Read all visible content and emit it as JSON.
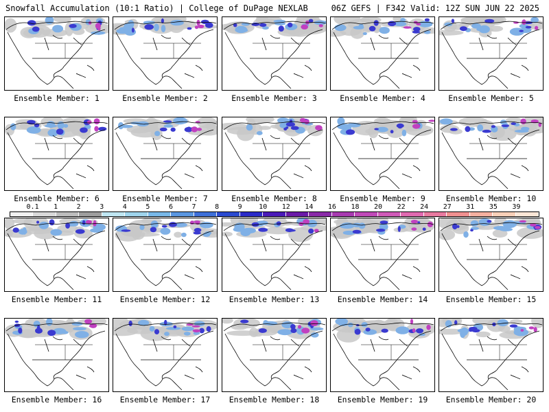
{
  "header": {
    "left_title": "Snowfall Accumulation (10:1 Ratio) | College of DuPage NEXLAB",
    "right_title": "06Z GEFS | F342 Valid: 12Z SUN JUN 22 2025"
  },
  "panels": [
    {
      "label": "Ensemble Member: 1"
    },
    {
      "label": "Ensemble Member: 2"
    },
    {
      "label": "Ensemble Member: 3"
    },
    {
      "label": "Ensemble Member: 4"
    },
    {
      "label": "Ensemble Member: 5"
    },
    {
      "label": "Ensemble Member: 6"
    },
    {
      "label": "Ensemble Member: 7"
    },
    {
      "label": "Ensemble Member: 8"
    },
    {
      "label": "Ensemble Member: 9"
    },
    {
      "label": "Ensemble Member: 10"
    },
    {
      "label": "Ensemble Member: 11"
    },
    {
      "label": "Ensemble Member: 12"
    },
    {
      "label": "Ensemble Member: 13"
    },
    {
      "label": "Ensemble Member: 14"
    },
    {
      "label": "Ensemble Member: 15"
    },
    {
      "label": "Ensemble Member: 16"
    },
    {
      "label": "Ensemble Member: 17"
    },
    {
      "label": "Ensemble Member: 18"
    },
    {
      "label": "Ensemble Member: 19"
    },
    {
      "label": "Ensemble Member: 20"
    }
  ],
  "colorbar": {
    "labels": [
      "0.1",
      "1",
      "2",
      "3",
      "4",
      "5",
      "6",
      "7",
      "8",
      "9",
      "10",
      "12",
      "14",
      "16",
      "18",
      "20",
      "22",
      "24",
      "27",
      "31",
      "35",
      "39"
    ],
    "colors": [
      "#f2f2f2",
      "#d9d9d9",
      "#bdbdbd",
      "#9e9e9e",
      "#bfe6f2",
      "#9fd4ec",
      "#78b8e8",
      "#5a96e0",
      "#3d6fd8",
      "#2a4ad0",
      "#2a2ac8",
      "#4a1ab8",
      "#6a1aa8",
      "#8a2aa8",
      "#a83ab0",
      "#c04ab8",
      "#d05ab8",
      "#e06ab0",
      "#e87aa0",
      "#f09090",
      "#f4b0a0",
      "#f8d0b8",
      "#fbe6d6"
    ]
  },
  "map_colors": {
    "land": "#ffffff",
    "coast": "#000000",
    "snow_light": "#c8c8c8",
    "snow_mid": "#7fb0e6",
    "snow_heavy": "#3a3ad0",
    "snow_extreme": "#c040c0"
  }
}
